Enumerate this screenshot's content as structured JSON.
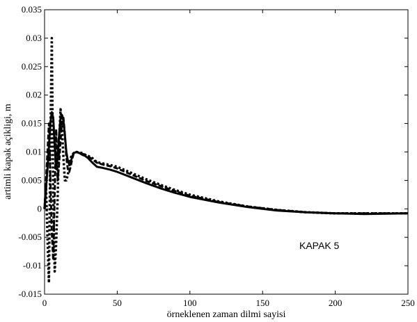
{
  "chart_data": {
    "type": "line",
    "xlabel": "örneklenen zaman dilmi sayisi",
    "ylabel": "artimli kapak açikligi, m",
    "xlim": [
      0,
      250
    ],
    "ylim": [
      -0.015,
      0.035
    ],
    "x_ticks": [
      0,
      50,
      100,
      150,
      200,
      250
    ],
    "x_tick_labels": [
      "0",
      "50",
      "100",
      "150",
      "200",
      "250"
    ],
    "y_ticks": [
      -0.015,
      -0.01,
      -0.005,
      0,
      0.005,
      0.01,
      0.015,
      0.02,
      0.025,
      0.03,
      0.035
    ],
    "y_tick_labels": [
      "-0.015",
      "-0.01",
      "-0.005",
      "0",
      "0.005",
      "0.01",
      "0.015",
      "0.02",
      "0.025",
      "0.03",
      "0.035"
    ],
    "grid": false,
    "annotation": "KAPAK 5",
    "series": [
      {
        "style": "solid",
        "x": [
          0,
          2,
          4,
          5,
          6,
          7,
          8,
          9,
          10,
          11,
          12,
          13,
          14,
          15,
          16,
          17,
          18,
          19,
          20,
          22,
          24,
          26,
          28,
          30,
          33,
          36,
          40,
          45,
          50,
          60,
          70,
          80,
          90,
          100,
          120,
          140,
          160,
          180,
          200,
          220,
          250
        ],
        "y": [
          0,
          0.007,
          0.015,
          0.017,
          0.016,
          0.011,
          0.007,
          0.009,
          0.013,
          0.016,
          0.0165,
          0.0155,
          0.013,
          0.01,
          0.0085,
          0.0078,
          0.0082,
          0.0092,
          0.0098,
          0.01,
          0.0098,
          0.0095,
          0.0093,
          0.0089,
          0.0081,
          0.0074,
          0.0072,
          0.0069,
          0.0065,
          0.0055,
          0.0045,
          0.0036,
          0.0028,
          0.0021,
          0.0011,
          0.0003,
          -0.0003,
          -0.0006,
          -0.0008,
          -0.0009,
          -0.0008
        ]
      },
      {
        "style": "dashed",
        "x": [
          0,
          2,
          3,
          4,
          5,
          6,
          7,
          8,
          9,
          10,
          11,
          12,
          13,
          14,
          15,
          16,
          17,
          18,
          19,
          20,
          22,
          24,
          26,
          28,
          30,
          33,
          36,
          40,
          45,
          50,
          60,
          70,
          80,
          90,
          100,
          120,
          140,
          160,
          180,
          200,
          220,
          250
        ],
        "y": [
          0,
          0.01,
          0.015,
          0.005,
          -0.004,
          -0.009,
          0.003,
          0.014,
          0.005,
          0.008,
          0.012,
          0.0155,
          0.016,
          0.013,
          0.009,
          0.007,
          0.0065,
          0.0075,
          0.0088,
          0.0097,
          0.01,
          0.0098,
          0.0097,
          0.0095,
          0.0092,
          0.0087,
          0.0081,
          0.0078,
          0.0075,
          0.0071,
          0.006,
          0.0049,
          0.004,
          0.0031,
          0.0023,
          0.0012,
          0.0004,
          -0.0002,
          -0.0006,
          -0.0008,
          -0.0008,
          -0.0008
        ]
      },
      {
        "style": "dotted",
        "x": [
          0,
          1,
          2,
          3,
          4,
          5,
          6,
          7,
          8,
          9,
          10,
          11,
          12,
          13,
          14,
          15,
          16,
          17,
          18,
          19,
          20,
          22,
          24,
          26,
          28,
          30,
          33,
          36,
          40,
          45,
          50,
          60,
          70,
          80,
          90,
          100,
          120,
          140,
          160,
          180,
          200,
          220,
          250
        ],
        "y": [
          0,
          0.004,
          -0.005,
          -0.013,
          0.012,
          0.03,
          0.002,
          -0.011,
          -0.006,
          0.002,
          0.012,
          0.0175,
          0.014,
          0.009,
          0.005,
          0.005,
          0.006,
          0.0075,
          0.009,
          0.0095,
          0.0098,
          0.01,
          0.0099,
          0.0098,
          0.0095,
          0.0093,
          0.0089,
          0.0082,
          0.008,
          0.0077,
          0.0074,
          0.0063,
          0.0052,
          0.0042,
          0.0033,
          0.0025,
          0.0013,
          0.0004,
          -0.0002,
          -0.0006,
          -0.0008,
          -0.0008,
          -0.0008
        ]
      }
    ]
  }
}
